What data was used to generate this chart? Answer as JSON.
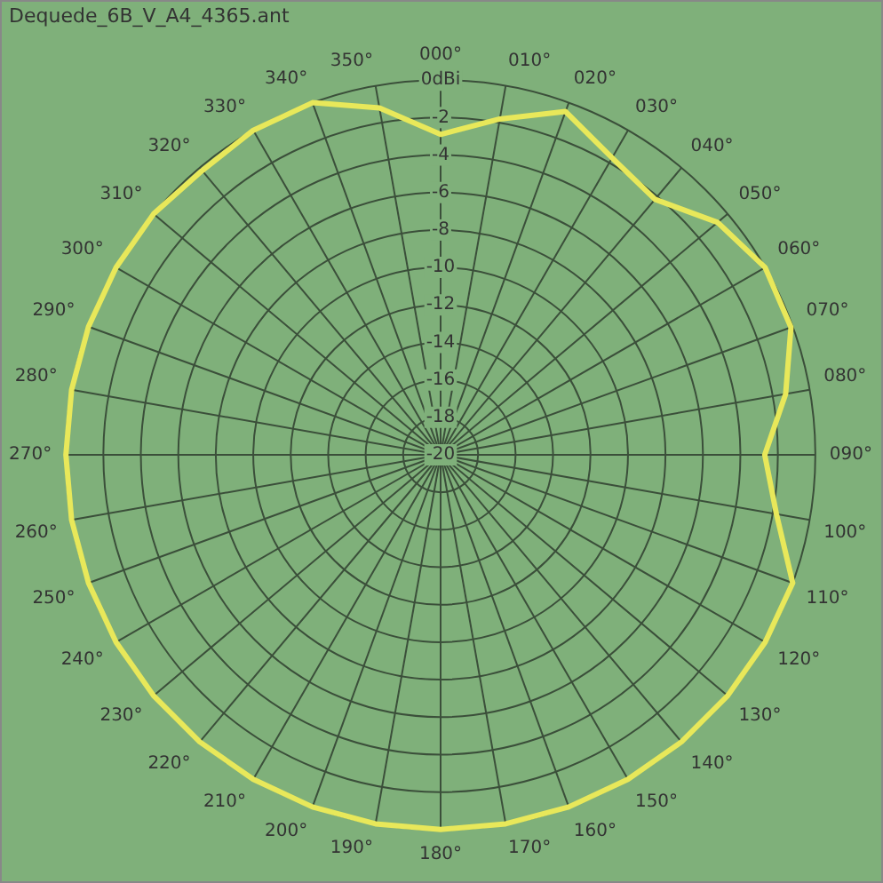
{
  "chart_data": {
    "type": "radar",
    "title": "Dequede_6B_V_A4_4365.ant",
    "categories": [
      "000°",
      "010°",
      "020°",
      "030°",
      "040°",
      "050°",
      "060°",
      "070°",
      "080°",
      "090°",
      "100°",
      "110°",
      "120°",
      "130°",
      "140°",
      "150°",
      "160°",
      "170°",
      "180°",
      "190°",
      "200°",
      "210°",
      "220°",
      "230°",
      "240°",
      "250°",
      "260°",
      "270°",
      "280°",
      "290°",
      "300°",
      "310°",
      "320°",
      "330°",
      "340°",
      "350°"
    ],
    "series": [
      {
        "color": "#e8e85a",
        "values": [
          -2.9,
          -1.8,
          -0.5,
          -1.7,
          -2.2,
          -0.7,
          0,
          -0.1,
          -1.3,
          -2.7,
          -1.8,
          0,
          0,
          0,
          0,
          0,
          0,
          0,
          0,
          0,
          0,
          0,
          0,
          0,
          0,
          0,
          0,
          0,
          0,
          0,
          0,
          0,
          -0.2,
          0,
          0,
          -1.2
        ]
      }
    ],
    "ylim": [
      -20,
      0
    ],
    "yticks": [
      -20,
      -18,
      -16,
      -14,
      -12,
      -10,
      -8,
      -6,
      -4,
      -2,
      {
        "value": 0,
        "label": "0dBi"
      }
    ],
    "grid": true,
    "marker": "none",
    "legend": false
  }
}
